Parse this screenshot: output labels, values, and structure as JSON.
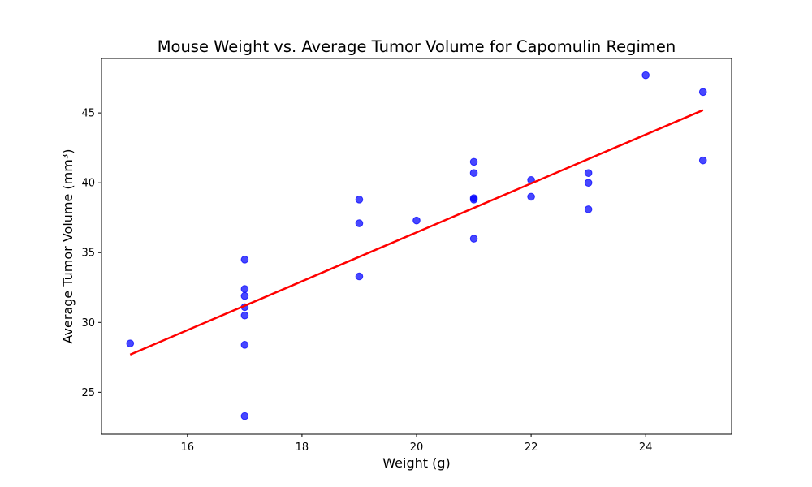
{
  "chart_data": {
    "type": "scatter",
    "title": "Mouse Weight vs. Average Tumor Volume for Capomulin Regimen",
    "xlabel": "Weight (g)",
    "ylabel": "Average Tumor Volume (mm³)",
    "xlim": [
      14.5,
      25.5
    ],
    "ylim": [
      22.0,
      48.9
    ],
    "xticks": [
      16,
      18,
      20,
      22,
      24
    ],
    "yticks": [
      25,
      30,
      35,
      40,
      45
    ],
    "grid": false,
    "legend": "none",
    "series": [
      {
        "type": "scatter",
        "color": "#0000ff",
        "points": [
          {
            "x": 15,
            "y": 28.5
          },
          {
            "x": 17,
            "y": 34.5
          },
          {
            "x": 17,
            "y": 32.4
          },
          {
            "x": 17,
            "y": 31.9
          },
          {
            "x": 17,
            "y": 31.1
          },
          {
            "x": 17,
            "y": 30.5
          },
          {
            "x": 17,
            "y": 28.4
          },
          {
            "x": 17,
            "y": 23.3
          },
          {
            "x": 19,
            "y": 38.8
          },
          {
            "x": 19,
            "y": 37.1
          },
          {
            "x": 19,
            "y": 33.3
          },
          {
            "x": 20,
            "y": 37.3
          },
          {
            "x": 21,
            "y": 41.5
          },
          {
            "x": 21,
            "y": 40.7
          },
          {
            "x": 21,
            "y": 38.9
          },
          {
            "x": 21,
            "y": 38.8
          },
          {
            "x": 21,
            "y": 36.0
          },
          {
            "x": 22,
            "y": 40.2
          },
          {
            "x": 22,
            "y": 39.0
          },
          {
            "x": 23,
            "y": 40.7
          },
          {
            "x": 23,
            "y": 40.0
          },
          {
            "x": 23,
            "y": 38.1
          },
          {
            "x": 24,
            "y": 47.7
          },
          {
            "x": 25,
            "y": 46.5
          },
          {
            "x": 25,
            "y": 41.6
          }
        ]
      },
      {
        "type": "line",
        "color": "#ff0000",
        "points": [
          {
            "x": 15,
            "y": 27.7
          },
          {
            "x": 25,
            "y": 45.2
          }
        ]
      }
    ]
  }
}
